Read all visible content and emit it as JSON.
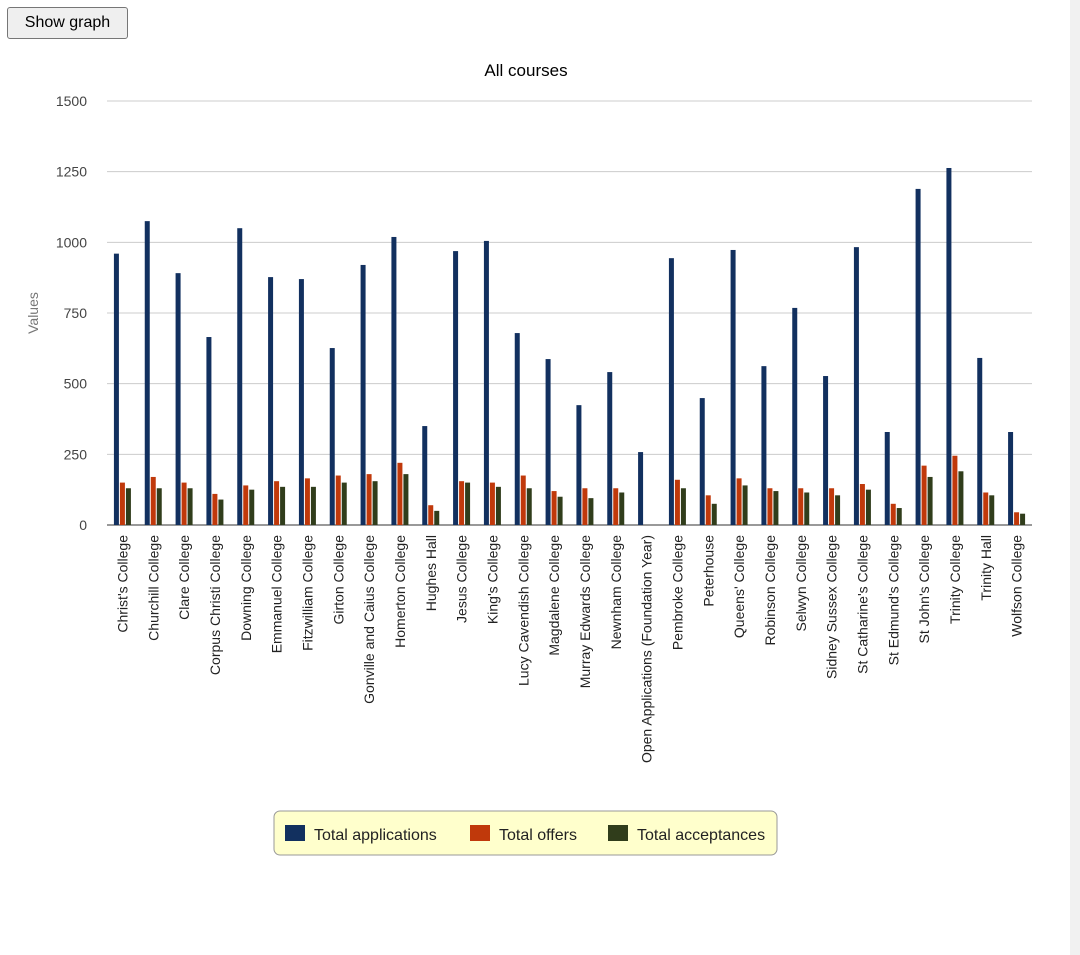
{
  "button": {
    "label": "Show graph"
  },
  "chart_data": {
    "type": "bar",
    "title": "All courses",
    "y_label": "Values",
    "categories": [
      "Christ's College",
      "Churchill College",
      "Clare College",
      "Corpus Christi College",
      "Downing College",
      "Emmanuel College",
      "Fitzwilliam College",
      "Girton College",
      "Gonville and Caius College",
      "Homerton College",
      "Hughes Hall",
      "Jesus College",
      "King's College",
      "Lucy Cavendish College",
      "Magdalene College",
      "Murray Edwards College",
      "Newnham College",
      "Open Applications (Foundation Year)",
      "Pembroke College",
      "Peterhouse",
      "Queens' College",
      "Robinson College",
      "Selwyn College",
      "Sidney Sussex College",
      "St Catharine's College",
      "St Edmund's College",
      "St John's College",
      "Trinity College",
      "Trinity Hall",
      "Wolfson College"
    ],
    "series": [
      {
        "name": "Total applications",
        "color": "#12305f",
        "values": [
          960,
          1075,
          891,
          665,
          1050,
          877,
          870,
          626,
          920,
          1019,
          350,
          969,
          1005,
          679,
          587,
          424,
          541,
          258,
          944,
          449,
          973,
          562,
          768,
          527,
          983,
          329,
          1189,
          1263,
          591,
          329
        ]
      },
      {
        "name": "Total offers",
        "color": "#c0390b",
        "values": [
          150,
          170,
          150,
          110,
          140,
          155,
          165,
          175,
          180,
          220,
          70,
          155,
          150,
          175,
          120,
          130,
          130,
          0,
          160,
          105,
          165,
          130,
          130,
          130,
          145,
          75,
          210,
          245,
          115,
          45
        ]
      },
      {
        "name": "Total acceptances",
        "color": "#303d1b",
        "values": [
          130,
          130,
          130,
          90,
          125,
          135,
          135,
          150,
          155,
          180,
          50,
          150,
          135,
          130,
          100,
          95,
          115,
          0,
          130,
          75,
          140,
          120,
          115,
          105,
          125,
          60,
          170,
          190,
          105,
          40
        ]
      }
    ],
    "ylim": [
      0,
      1500
    ],
    "yticks": [
      0,
      250,
      500,
      750,
      1000,
      1250,
      1500
    ],
    "grid": true,
    "legend": "bottom"
  }
}
